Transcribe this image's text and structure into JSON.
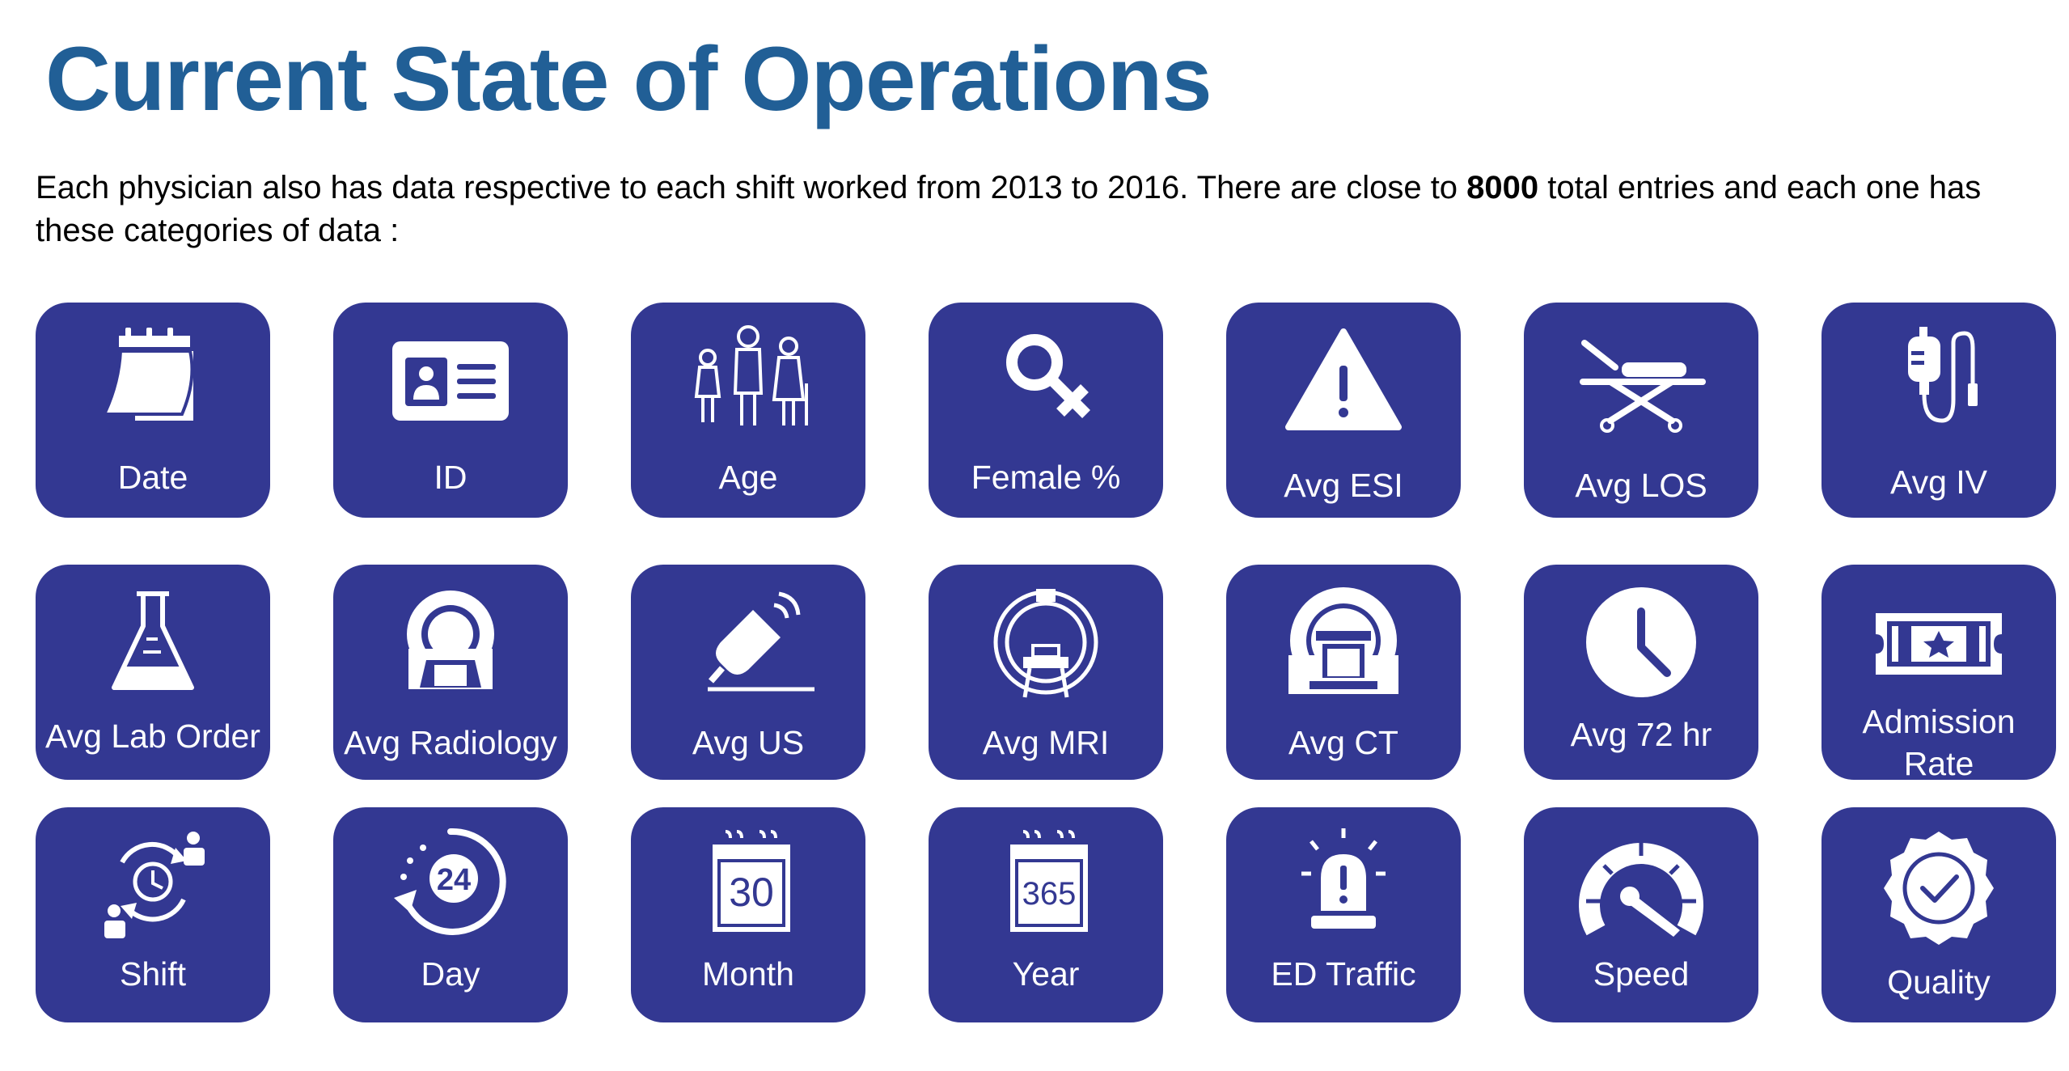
{
  "page": {
    "title": "Current State of Operations",
    "intro_before": "Each physician also has data respective to each shift worked from 2013 to 2016. There are close to ",
    "intro_bold": "8000",
    "intro_after": " total entries and each one has these categories of data :"
  },
  "colors": {
    "title": "#215f96",
    "tile_background": "#333892",
    "tile_foreground": "#ffffff"
  },
  "categories": [
    {
      "label": "Date",
      "icon": "calendar-page-icon"
    },
    {
      "label": "ID",
      "icon": "id-card-icon"
    },
    {
      "label": "Age",
      "icon": "family-people-icon"
    },
    {
      "label": "Female %",
      "icon": "female-symbol-icon"
    },
    {
      "label": "Avg ESI",
      "icon": "warning-triangle-icon"
    },
    {
      "label": "Avg LOS",
      "icon": "stretcher-icon"
    },
    {
      "label": "Avg IV",
      "icon": "iv-bag-icon"
    },
    {
      "label": "Avg Lab Order",
      "icon": "lab-flask-icon"
    },
    {
      "label": "Avg Radiology",
      "icon": "radiology-scanner-icon"
    },
    {
      "label": "Avg US",
      "icon": "ultrasound-probe-icon"
    },
    {
      "label": "Avg MRI",
      "icon": "mri-machine-icon"
    },
    {
      "label": "Avg CT",
      "icon": "ct-scanner-icon"
    },
    {
      "label": "Avg 72 hr",
      "icon": "clock-icon"
    },
    {
      "label": "Admission Rate",
      "icon": "admission-ticket-icon"
    },
    {
      "label": "Shift",
      "icon": "shift-rotation-icon"
    },
    {
      "label": "Day",
      "icon": "24-hour-icon"
    },
    {
      "label": "Month",
      "icon": "calendar-30-icon"
    },
    {
      "label": "Year",
      "icon": "calendar-365-icon"
    },
    {
      "label": "ED Traffic",
      "icon": "siren-icon"
    },
    {
      "label": "Speed",
      "icon": "speedometer-icon"
    },
    {
      "label": "Quality",
      "icon": "quality-badge-icon"
    }
  ],
  "icon_text": {
    "day_number": "24",
    "month_number": "30",
    "year_number": "365"
  }
}
